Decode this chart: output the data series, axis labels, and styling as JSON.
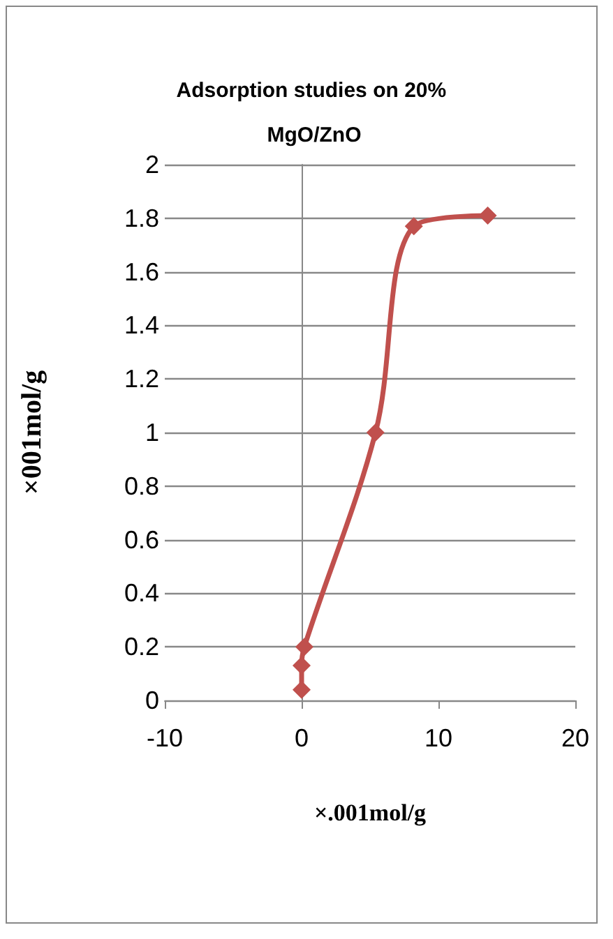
{
  "chart_data": {
    "type": "line",
    "title": "Adsorption studies on 20% MgO/ZnO",
    "xlabel": "×.001mol/g",
    "ylabel": "×001mol/g",
    "x": [
      0,
      0,
      0.2,
      5.4,
      8.2,
      13.6
    ],
    "series": [
      {
        "color": "#c0504d",
        "values": [
          0.04,
          0.13,
          0.2,
          1.0,
          1.77,
          1.81
        ]
      }
    ],
    "xlim": [
      -10,
      20
    ],
    "xticks": [
      -10,
      0,
      10,
      20
    ],
    "ylim": [
      0,
      2
    ],
    "yticks": [
      0,
      0.2,
      0.4,
      0.6,
      0.8,
      1,
      1.2,
      1.4,
      1.6,
      1.8,
      2
    ],
    "grid": "y",
    "marker": "diamond",
    "line_style": "solid"
  }
}
